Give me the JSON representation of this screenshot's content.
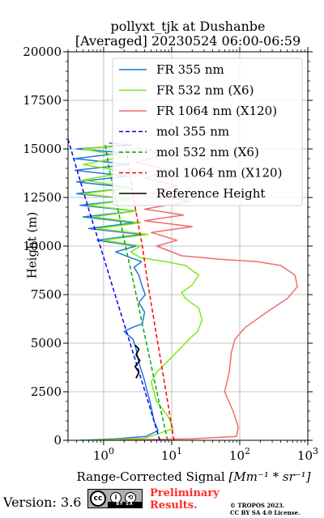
{
  "chart_data": {
    "type": "line",
    "title_line1": "pollyxt_tjk at Dushanbe",
    "title_line2": "[Averaged] 20230524 06:00-06:59",
    "xlabel_main": "Range-Corrected Signal ",
    "xlabel_unit": "[Mm⁻¹ * sr⁻¹]",
    "ylabel": "Height (m)",
    "xscale": "log",
    "xlim": [
      0.3,
      1000
    ],
    "ylim": [
      0,
      20000
    ],
    "grid": true,
    "legend_placement": "top-right",
    "x_ticks": [
      {
        "value": 1,
        "base": "10",
        "exp": "0"
      },
      {
        "value": 10,
        "base": "10",
        "exp": "1"
      },
      {
        "value": 100,
        "base": "10",
        "exp": "2"
      },
      {
        "value": 1000,
        "base": "10",
        "exp": "3"
      }
    ],
    "y_ticks": [
      0,
      2500,
      5000,
      7500,
      10000,
      12500,
      15000,
      17500,
      20000
    ],
    "series": [
      {
        "name": "FR 355 nm",
        "color": "#1f77d4",
        "style": "solid",
        "points": [
          [
            0.45,
            0
          ],
          [
            1.5,
            80
          ],
          [
            4.2,
            200
          ],
          [
            6.3,
            500
          ],
          [
            5.5,
            1000
          ],
          [
            4.8,
            2000
          ],
          [
            4.3,
            2600
          ],
          [
            3.9,
            3200
          ],
          [
            3.5,
            3700
          ],
          [
            3.2,
            4200
          ],
          [
            3.0,
            4700
          ],
          [
            2.7,
            5200
          ],
          [
            2.0,
            5600
          ],
          [
            2.6,
            5800
          ],
          [
            3.7,
            6000
          ],
          [
            4.0,
            6600
          ],
          [
            3.3,
            7100
          ],
          [
            4.1,
            7500
          ],
          [
            3.7,
            7900
          ],
          [
            3.3,
            8500
          ],
          [
            2.8,
            8900
          ],
          [
            3.6,
            9200
          ],
          [
            2.5,
            9400
          ],
          [
            1.5,
            9700
          ],
          [
            3.0,
            10000
          ],
          [
            0.8,
            10300
          ],
          [
            3.6,
            10600
          ],
          [
            0.6,
            10900
          ],
          [
            2.8,
            11200
          ],
          [
            0.5,
            11500
          ],
          [
            3.0,
            11800
          ],
          [
            0.45,
            12100
          ],
          [
            2.7,
            12400
          ],
          [
            0.4,
            12700
          ],
          [
            2.5,
            13000
          ],
          [
            0.4,
            13300
          ],
          [
            2.2,
            13600
          ],
          [
            0.38,
            13900
          ],
          [
            2.4,
            14200
          ],
          [
            0.38,
            14500
          ],
          [
            2.0,
            14800
          ],
          [
            0.4,
            15000
          ],
          [
            2.6,
            15200
          ],
          [
            1.2,
            15300
          ]
        ]
      },
      {
        "name": "FR 532 nm (X6)",
        "color": "#7fe81c",
        "style": "solid",
        "points": [
          [
            0.5,
            0
          ],
          [
            4.0,
            100
          ],
          [
            10.5,
            600
          ],
          [
            9.0,
            1200
          ],
          [
            6.0,
            2000
          ],
          [
            5.0,
            3000
          ],
          [
            6.0,
            3500
          ],
          [
            9.5,
            4200
          ],
          [
            14.0,
            4800
          ],
          [
            18.0,
            5200
          ],
          [
            24.0,
            5600
          ],
          [
            28.0,
            6200
          ],
          [
            25.0,
            6800
          ],
          [
            16.0,
            7300
          ],
          [
            14.0,
            7600
          ],
          [
            20.0,
            8000
          ],
          [
            25.0,
            8500
          ],
          [
            16.0,
            9000
          ],
          [
            8.0,
            9200
          ],
          [
            3.5,
            9400
          ],
          [
            2.5,
            9700
          ],
          [
            3.5,
            10000
          ],
          [
            1.0,
            10300
          ],
          [
            4.5,
            10600
          ],
          [
            0.8,
            10900
          ],
          [
            3.5,
            11200
          ],
          [
            0.7,
            11500
          ],
          [
            3.0,
            11800
          ],
          [
            0.6,
            12100
          ],
          [
            2.7,
            12400
          ],
          [
            0.5,
            12700
          ],
          [
            2.5,
            13000
          ],
          [
            0.5,
            13400
          ],
          [
            2.2,
            13800
          ],
          [
            0.5,
            14200
          ],
          [
            2.0,
            14600
          ],
          [
            0.5,
            15000
          ],
          [
            1.8,
            15200
          ]
        ]
      },
      {
        "name": "FR 1064 nm (X120)",
        "color": "#f06c6c",
        "style": "solid",
        "points": [
          [
            1.0,
            0
          ],
          [
            20.0,
            80
          ],
          [
            90.0,
            200
          ],
          [
            95.0,
            700
          ],
          [
            80.0,
            1500
          ],
          [
            60.0,
            2500
          ],
          [
            70.0,
            3500
          ],
          [
            75.0,
            4500
          ],
          [
            85.0,
            5200
          ],
          [
            120.0,
            5800
          ],
          [
            250.0,
            6600
          ],
          [
            500.0,
            7300
          ],
          [
            700.0,
            7900
          ],
          [
            650.0,
            8500
          ],
          [
            400.0,
            9000
          ],
          [
            180.0,
            9200
          ],
          [
            60.0,
            9300
          ],
          [
            14.0,
            9500
          ],
          [
            6.0,
            10000
          ],
          [
            12.0,
            10300
          ],
          [
            5.0,
            10700
          ],
          [
            20.0,
            11000
          ],
          [
            4.0,
            11300
          ],
          [
            15.0,
            11600
          ],
          [
            4.0,
            11900
          ],
          [
            18.0,
            12300
          ],
          [
            5.0,
            12700
          ],
          [
            12.0,
            13100
          ],
          [
            4.0,
            13500
          ],
          [
            10.0,
            13900
          ],
          [
            3.0,
            14300
          ],
          [
            8.0,
            14700
          ],
          [
            3.0,
            15100
          ]
        ]
      },
      {
        "name": "mol 355 nm",
        "color": "#0000ff",
        "style": "dashed",
        "points": [
          [
            6.7,
            0
          ],
          [
            4.5,
            2000
          ],
          [
            3.0,
            4000
          ],
          [
            2.0,
            6000
          ],
          [
            1.33,
            8000
          ],
          [
            0.89,
            10000
          ],
          [
            0.59,
            12000
          ],
          [
            0.4,
            14000
          ],
          [
            0.3,
            15500
          ]
        ]
      },
      {
        "name": "mol 532 nm (X6)",
        "color": "#00aa00",
        "style": "dashed",
        "points": [
          [
            8.7,
            0
          ],
          [
            6.5,
            2000
          ],
          [
            4.9,
            4000
          ],
          [
            3.7,
            6000
          ],
          [
            2.8,
            8000
          ],
          [
            2.1,
            10000
          ],
          [
            1.6,
            12000
          ],
          [
            1.2,
            14000
          ],
          [
            1.05,
            15300
          ]
        ]
      },
      {
        "name": "mol 1064 nm (X120)",
        "color": "#ff0000",
        "style": "dashed",
        "points": [
          [
            10.8,
            0
          ],
          [
            8.7,
            2000
          ],
          [
            7.0,
            4000
          ],
          [
            5.6,
            6000
          ],
          [
            4.5,
            8000
          ],
          [
            3.7,
            10000
          ],
          [
            2.9,
            12000
          ],
          [
            2.35,
            14000
          ],
          [
            2.1,
            15200
          ]
        ]
      },
      {
        "name": "Reference Height",
        "color": "#000000",
        "style": "solid",
        "points": [
          [
            3.0,
            3200
          ],
          [
            3.3,
            3500
          ],
          [
            2.9,
            3800
          ],
          [
            3.4,
            4100
          ],
          [
            3.0,
            4400
          ],
          [
            3.3,
            4700
          ],
          [
            2.9,
            4900
          ]
        ]
      }
    ]
  },
  "footer": {
    "version": "Version: 3.6",
    "cc_label": "cc",
    "cc_strip": "BY  SA",
    "cc_by_icon": "person-icon",
    "cc_sa_icon": "share-alike-icon",
    "preliminary_line1": "Preliminary",
    "preliminary_line2": "Results.",
    "copyright_line1": "© TROPOS 2023.",
    "copyright_line2": "CC BY SA 4.0 License.",
    "preliminary_color": "#ff2a2a"
  }
}
